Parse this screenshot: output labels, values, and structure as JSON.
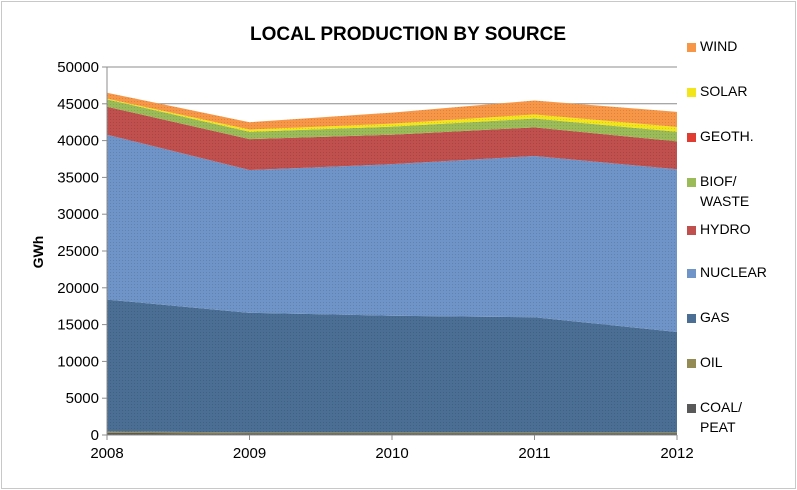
{
  "chart_data": {
    "type": "area",
    "stacked": true,
    "title": "LOCAL PRODUCTION BY SOURCE",
    "xlabel": "",
    "ylabel": "GWh",
    "x": [
      "2008",
      "2009",
      "2010",
      "2011",
      "2012"
    ],
    "ylim": [
      0,
      50000
    ],
    "yticks": [
      "0",
      "5000",
      "10000",
      "15000",
      "20000",
      "25000",
      "30000",
      "35000",
      "40000",
      "45000",
      "50000"
    ],
    "grid": true,
    "legend_position": "right",
    "series": [
      {
        "name": "COAL/ PEAT",
        "label_lines": [
          "COAL/",
          "PEAT"
        ],
        "color": "#595959",
        "values": [
          300,
          200,
          200,
          200,
          200
        ]
      },
      {
        "name": "OIL",
        "label_lines": [
          "OIL"
        ],
        "color": "#948a54",
        "values": [
          200,
          150,
          150,
          150,
          150
        ]
      },
      {
        "name": "GAS",
        "label_lines": [
          "GAS"
        ],
        "color": "#4a6e94",
        "values": [
          17900,
          16250,
          15850,
          15650,
          13650
        ]
      },
      {
        "name": "NUCLEAR",
        "label_lines": [
          "NUCLEAR"
        ],
        "color": "#6f94c8",
        "values": [
          22400,
          19400,
          20600,
          21900,
          22100
        ]
      },
      {
        "name": "HYDRO",
        "label_lines": [
          "HYDRO"
        ],
        "color": "#c0504d",
        "values": [
          3800,
          4200,
          4000,
          3900,
          3800
        ]
      },
      {
        "name": "BIOF/ WASTE",
        "label_lines": [
          "BIOF/",
          "WASTE"
        ],
        "color": "#9bbb59",
        "values": [
          1000,
          1000,
          1100,
          1200,
          1300
        ]
      },
      {
        "name": "GEOTH.",
        "label_lines": [
          "GEOTH."
        ],
        "color": "#e03c31",
        "values": [
          0,
          0,
          0,
          0,
          0
        ]
      },
      {
        "name": "SOLAR",
        "label_lines": [
          "SOLAR"
        ],
        "color": "#f2e51b",
        "values": [
          100,
          300,
          400,
          550,
          650
        ]
      },
      {
        "name": "WIND",
        "label_lines": [
          "WIND"
        ],
        "color": "#f79646",
        "values": [
          800,
          1000,
          1500,
          1900,
          2050
        ]
      }
    ]
  }
}
